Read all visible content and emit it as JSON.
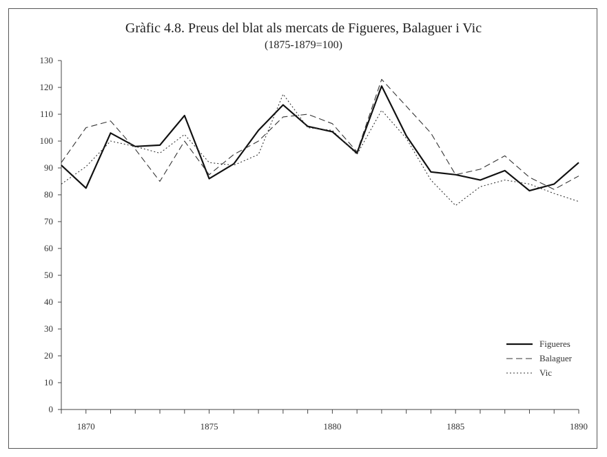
{
  "chart_data": {
    "type": "line",
    "title": "Gràfic 4.8. Preus del blat als mercats de Figueres, Balaguer i Vic",
    "subtitle": "(1875-1879=100)",
    "xlabel": "",
    "ylabel": "",
    "xlim": [
      1869,
      1890
    ],
    "ylim": [
      0,
      130
    ],
    "yticks": [
      0,
      10,
      20,
      30,
      40,
      50,
      60,
      70,
      80,
      90,
      100,
      110,
      120,
      130
    ],
    "xtick_labels": [
      1870,
      1875,
      1880,
      1885,
      1890
    ],
    "x": [
      1869,
      1870,
      1871,
      1872,
      1873,
      1874,
      1875,
      1876,
      1877,
      1878,
      1879,
      1880,
      1881,
      1882,
      1883,
      1884,
      1885,
      1886,
      1887,
      1888,
      1889,
      1890
    ],
    "series": [
      {
        "name": "Figueres",
        "style": "solid",
        "color": "#111111",
        "values": [
          91,
          82.5,
          103,
          98,
          98.5,
          109.5,
          86,
          91.5,
          104,
          113.5,
          105.5,
          103.5,
          95.5,
          120.5,
          102,
          88.5,
          87.5,
          85.5,
          89,
          81.5,
          84,
          92
        ]
      },
      {
        "name": "Balaguer",
        "style": "dashed",
        "color": "#333333",
        "values": [
          92,
          105,
          107.5,
          97,
          85,
          100,
          87.5,
          95,
          100,
          109,
          110,
          106.5,
          96,
          123,
          113,
          103,
          87.5,
          89.5,
          94.5,
          86.5,
          82,
          87
        ]
      },
      {
        "name": "Vic",
        "style": "dotted",
        "color": "#333333",
        "values": [
          84,
          90.5,
          100,
          98,
          95.5,
          102.5,
          92,
          91,
          95,
          117.5,
          105,
          104,
          95,
          111.5,
          101,
          85.5,
          76,
          83,
          85.5,
          84,
          80.5,
          77.5
        ]
      }
    ],
    "legend": {
      "position": "bottom-right"
    },
    "grid": false
  }
}
